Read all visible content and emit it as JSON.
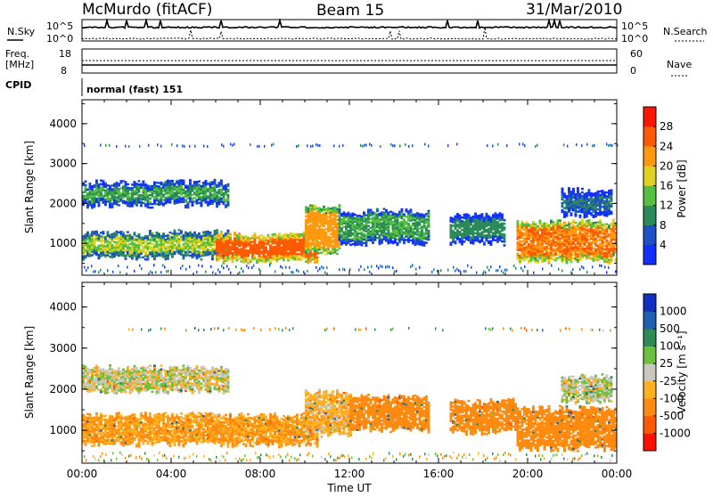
{
  "header": {
    "station": "McMurdo (fitACF)",
    "beam": "Beam 15",
    "date": "31/Mar/2010"
  },
  "aux_panels": {
    "nsky_label": "N.Sky",
    "nsky_top": "10^5",
    "nsky_bottom": "10^0",
    "nsearch_label": "N.Search",
    "freq_label_1": "Freq.",
    "freq_label_2": "[MHz]",
    "freq_top": "18",
    "freq_bottom": "8",
    "nave_top": "60",
    "nave_bottom": "0",
    "nave_label": "Nave",
    "cpid_label": "CPID",
    "cpid_value": "normal (fast) 151"
  },
  "colors": {
    "power_scale": [
      "#1030ff",
      "#2050c8",
      "#2a8a5a",
      "#55c040",
      "#e0d020",
      "#ff9a10",
      "#ff5a00",
      "#ff1500"
    ],
    "velocity_scale": [
      "#ff1000",
      "#ff5a00",
      "#ff8a10",
      "#ffb020",
      "#c8c8c0",
      "#6cc040",
      "#2f8a55",
      "#2060b0",
      "#1030c0"
    ]
  },
  "chart_data": [
    {
      "type": "heatmap",
      "name": "power",
      "ylabel": "Slant Range [km]",
      "xlabel": "",
      "xlim": [
        0,
        24
      ],
      "ylim": [
        200,
        4600
      ],
      "x_ticks": [
        "00:00",
        "04:00",
        "08:00",
        "12:00",
        "16:00",
        "20:00",
        "00:00"
      ],
      "y_ticks": [
        1000,
        2000,
        3000,
        4000
      ],
      "colorbar": {
        "label": "Power [dB]",
        "ticks": [
          "4",
          "8",
          "12",
          "16",
          "20",
          "24",
          "28"
        ],
        "range": [
          0,
          32
        ]
      },
      "regions": [
        {
          "t0": 0.0,
          "t1": 6.5,
          "r0": 650,
          "r1": 1250,
          "value": 16
        },
        {
          "t0": 0.0,
          "t1": 6.5,
          "r0": 1950,
          "r1": 2500,
          "value": 12
        },
        {
          "t0": 6.0,
          "t1": 10.5,
          "r0": 550,
          "r1": 1200,
          "value": 26
        },
        {
          "t0": 10.0,
          "t1": 11.5,
          "r0": 750,
          "r1": 1900,
          "value": 22
        },
        {
          "t0": 11.5,
          "t1": 15.5,
          "r0": 1000,
          "r1": 1800,
          "value": 12
        },
        {
          "t0": 16.5,
          "t1": 19.0,
          "r0": 1000,
          "r1": 1700,
          "value": 10
        },
        {
          "t0": 19.5,
          "t1": 24.0,
          "r0": 550,
          "r1": 1500,
          "value": 24
        },
        {
          "t0": 21.5,
          "t1": 23.8,
          "r0": 1700,
          "r1": 2300,
          "value": 8
        }
      ]
    },
    {
      "type": "heatmap",
      "name": "velocity",
      "ylabel": "Slant Range [km]",
      "xlabel": "Time UT",
      "xlim": [
        0,
        24
      ],
      "ylim": [
        200,
        4600
      ],
      "x_ticks": [
        "00:00",
        "04:00",
        "08:00",
        "12:00",
        "16:00",
        "20:00",
        "00:00"
      ],
      "y_ticks": [
        1000,
        2000,
        3000,
        4000
      ],
      "colorbar": {
        "label": "Velocity [m s⁻¹]",
        "ticks": [
          "1000",
          "500",
          "100",
          "25",
          "-25",
          "-100",
          "-500",
          "-1000"
        ]
      },
      "regions": [
        {
          "t0": 0.0,
          "t1": 10.5,
          "r0": 650,
          "r1": 1350,
          "value": -100
        },
        {
          "t0": 0.0,
          "t1": 6.5,
          "r0": 1950,
          "r1": 2500,
          "value": 0
        },
        {
          "t0": 10.0,
          "t1": 12.0,
          "r0": 900,
          "r1": 1900,
          "value": -60
        },
        {
          "t0": 12.0,
          "t1": 15.5,
          "r0": 1000,
          "r1": 1800,
          "value": -300
        },
        {
          "t0": 16.5,
          "t1": 19.5,
          "r0": 950,
          "r1": 1700,
          "value": -300
        },
        {
          "t0": 19.5,
          "t1": 24.0,
          "r0": 550,
          "r1": 1500,
          "value": -300
        },
        {
          "t0": 21.5,
          "t1": 23.8,
          "r0": 1700,
          "r1": 2300,
          "value": 10
        }
      ]
    }
  ]
}
